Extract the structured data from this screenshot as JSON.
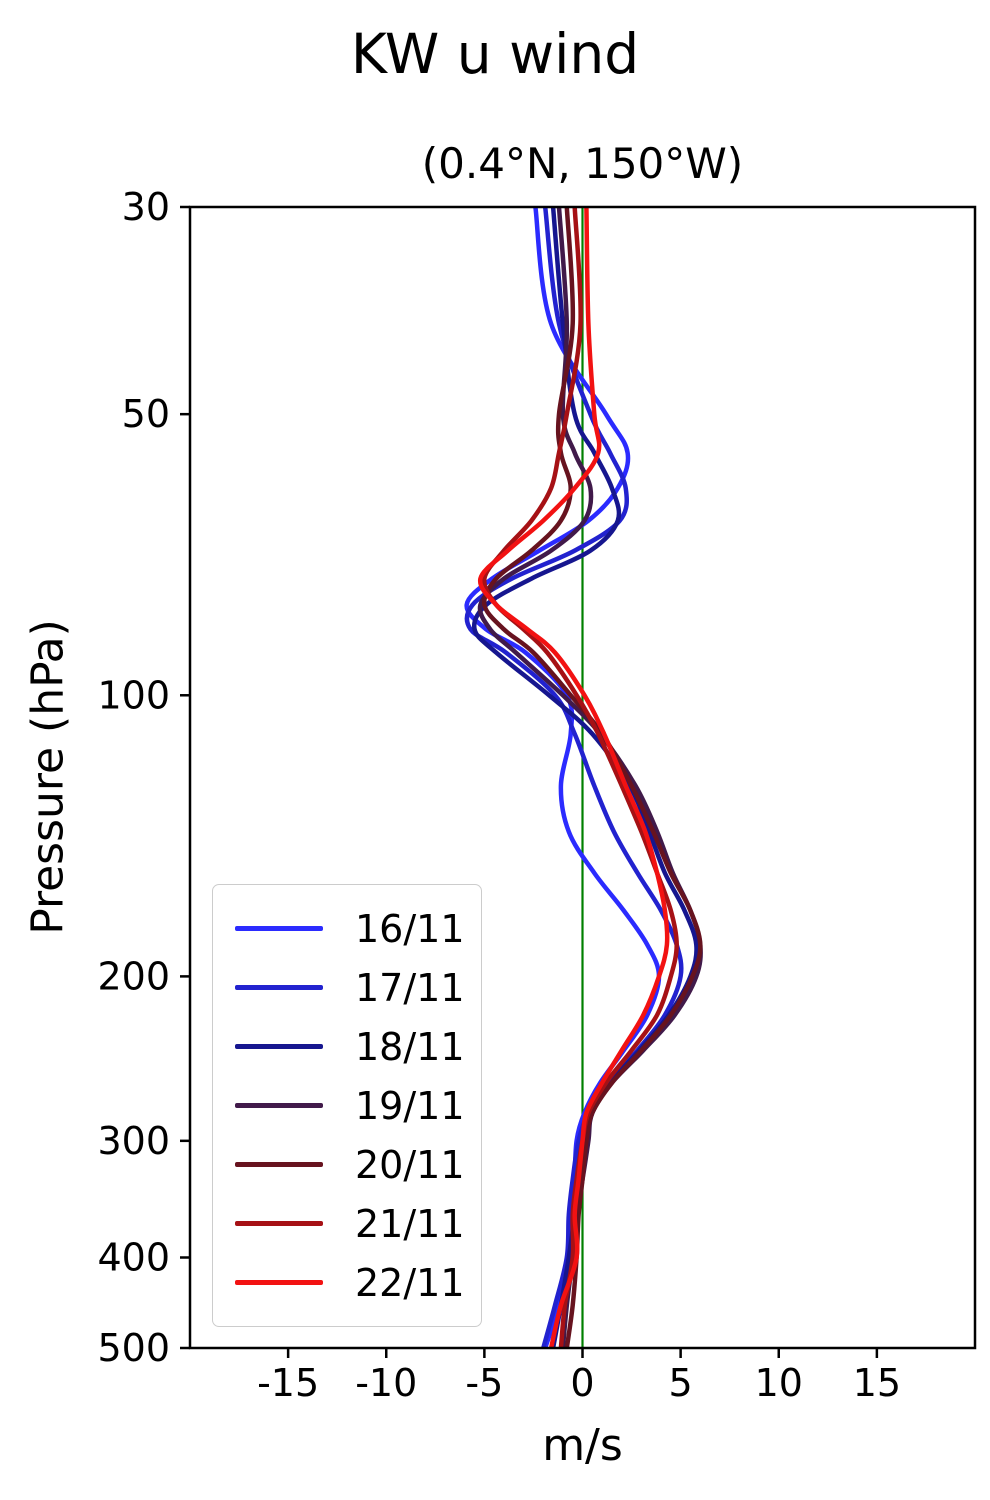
{
  "chart_data": {
    "type": "line",
    "title": "KW u wind",
    "subtitle": "(0.4°N, 150°W)",
    "xlabel": "m/s",
    "ylabel": "Pressure (hPa)",
    "xlim": [
      -20,
      20
    ],
    "ylim": [
      30,
      500
    ],
    "y_scale": "log",
    "y_inverted": true,
    "grid": false,
    "legend_position": "lower left",
    "x_ticks": [
      -15,
      -10,
      -5,
      0,
      5,
      10,
      15
    ],
    "y_ticks": [
      30,
      50,
      100,
      200,
      300,
      400,
      500
    ],
    "zero_line": {
      "x": 0,
      "color": "#008000"
    },
    "axis_color": "#000000",
    "pressure_levels": [
      30,
      40,
      50,
      55,
      60,
      65,
      70,
      75,
      80,
      85,
      90,
      100,
      110,
      125,
      140,
      155,
      170,
      185,
      200,
      220,
      240,
      260,
      280,
      300,
      330,
      360,
      400,
      450,
      500
    ],
    "series": [
      {
        "name": "16/11",
        "color": "#2b2bff",
        "values": [
          -2.4,
          -1.6,
          1.2,
          2.3,
          1.8,
          0.3,
          -2.2,
          -4.6,
          -5.9,
          -4.9,
          -2.9,
          -0.8,
          -0.6,
          -1.1,
          -0.7,
          0.6,
          2.1,
          3.3,
          3.9,
          3.3,
          2.1,
          0.9,
          0.1,
          -0.3,
          -0.4,
          -0.5,
          -0.6,
          -1.2,
          -1.9
        ]
      },
      {
        "name": "17/11",
        "color": "#2222cf",
        "values": [
          -1.9,
          -1.2,
          0.4,
          1.4,
          2.2,
          1.9,
          -0.4,
          -3.6,
          -5.6,
          -5.7,
          -3.9,
          -1.4,
          -0.4,
          0.6,
          1.6,
          2.8,
          4.0,
          4.8,
          5.0,
          4.2,
          2.8,
          1.3,
          0.3,
          -0.2,
          -0.5,
          -0.7,
          -0.8,
          -1.4,
          -2.0
        ]
      },
      {
        "name": "18/11",
        "color": "#16168f",
        "values": [
          -1.5,
          -1.0,
          -0.4,
          0.6,
          1.5,
          1.8,
          0.4,
          -2.6,
          -4.9,
          -5.5,
          -4.4,
          -1.7,
          0.5,
          2.4,
          3.4,
          4.2,
          5.2,
          5.8,
          5.5,
          4.4,
          2.9,
          1.4,
          0.5,
          0.2,
          -0.2,
          -0.4,
          -0.7,
          -1.1,
          -1.5
        ]
      },
      {
        "name": "19/11",
        "color": "#411a4a",
        "values": [
          -1.2,
          -0.8,
          -1.0,
          -0.4,
          0.4,
          0.1,
          -1.6,
          -4.0,
          -5.2,
          -4.7,
          -3.4,
          -1.0,
          0.9,
          2.7,
          3.8,
          4.6,
          5.5,
          6.0,
          5.8,
          4.7,
          3.1,
          1.5,
          0.5,
          0.3,
          0.0,
          -0.3,
          -0.5,
          -0.8,
          -1.0
        ]
      },
      {
        "name": "20/11",
        "color": "#67131f",
        "values": [
          -0.8,
          -0.5,
          -1.2,
          -1.1,
          -0.6,
          -1.1,
          -2.6,
          -4.4,
          -5.0,
          -4.0,
          -2.5,
          -0.6,
          1.0,
          2.5,
          3.6,
          4.5,
          5.5,
          6.0,
          5.6,
          4.5,
          3.0,
          1.5,
          0.5,
          0.2,
          0.0,
          -0.2,
          -0.3,
          -0.5,
          -0.8
        ]
      },
      {
        "name": "21/11",
        "color": "#a61115",
        "values": [
          -0.4,
          -0.1,
          -0.8,
          -1.2,
          -1.6,
          -2.6,
          -4.0,
          -5.0,
          -4.4,
          -3.0,
          -1.8,
          -0.3,
          0.8,
          2.0,
          3.0,
          3.8,
          4.5,
          4.8,
          4.5,
          3.8,
          2.5,
          1.2,
          0.3,
          0.0,
          -0.3,
          -0.5,
          -0.5,
          -0.9,
          -1.1
        ]
      },
      {
        "name": "22/11",
        "color": "#f21212",
        "values": [
          0.2,
          0.3,
          0.6,
          0.8,
          -0.4,
          -2.0,
          -3.8,
          -5.2,
          -4.4,
          -2.8,
          -1.4,
          0.1,
          1.1,
          2.2,
          3.2,
          3.8,
          4.2,
          4.3,
          3.9,
          3.1,
          2.0,
          1.0,
          0.2,
          0.0,
          -0.2,
          -0.4,
          -0.3,
          -1.1,
          -1.6
        ]
      }
    ]
  }
}
